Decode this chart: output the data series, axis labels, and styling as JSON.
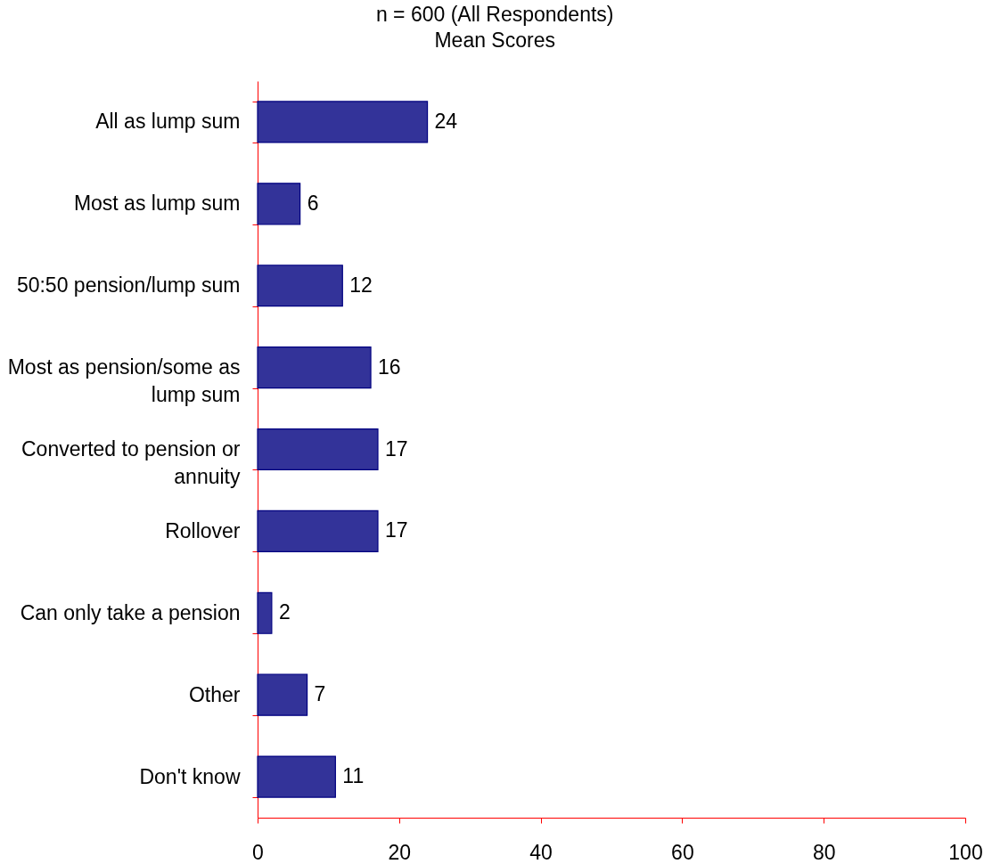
{
  "chart_data": {
    "type": "bar",
    "orientation": "horizontal",
    "title": "n = 600 (All Respondents)",
    "subtitle": "Mean Scores",
    "categories": [
      "All as lump sum",
      "Most as lump sum",
      "50:50 pension/lump sum",
      "Most as pension/some as lump sum",
      "Converted to pension or annuity",
      "Rollover",
      "Can only  take a pension",
      "Other",
      "Don't know"
    ],
    "values": [
      24,
      6,
      12,
      16,
      17,
      17,
      2,
      7,
      11
    ],
    "color": "#333399",
    "xlim": [
      0,
      100
    ],
    "xticks": [
      0,
      20,
      40,
      60,
      80,
      100
    ],
    "grid": false,
    "data_labels": true
  }
}
